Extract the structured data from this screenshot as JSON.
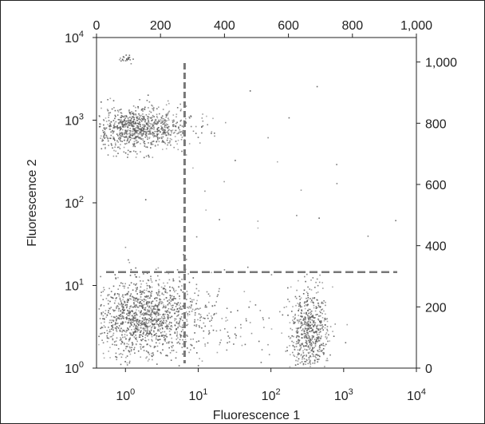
{
  "chart_data": {
    "type": "scatter",
    "xlabel": "Fluorescence 1",
    "ylabel": "Fluorescence 2",
    "x_axis_bottom": {
      "scale": "log",
      "range": [
        0.4,
        10000
      ],
      "ticks": [
        {
          "value": 1,
          "base": "10",
          "exp": "0"
        },
        {
          "value": 10,
          "base": "10",
          "exp": "1"
        },
        {
          "value": 100,
          "base": "10",
          "exp": "2"
        },
        {
          "value": 1000,
          "base": "10",
          "exp": "3"
        },
        {
          "value": 10000,
          "base": "10",
          "exp": "4"
        }
      ]
    },
    "x_axis_top": {
      "scale": "linear",
      "range": [
        0,
        1000
      ],
      "ticks": [
        {
          "value": 0,
          "label": "0"
        },
        {
          "value": 200,
          "label": "200"
        },
        {
          "value": 400,
          "label": "400"
        },
        {
          "value": 600,
          "label": "600"
        },
        {
          "value": 800,
          "label": "800"
        },
        {
          "value": 1000,
          "label": "1,000"
        }
      ]
    },
    "y_axis_left": {
      "scale": "log",
      "range": [
        1,
        10000
      ],
      "ticks": [
        {
          "value": 1,
          "base": "10",
          "exp": "0"
        },
        {
          "value": 10,
          "base": "10",
          "exp": "1"
        },
        {
          "value": 100,
          "base": "10",
          "exp": "2"
        },
        {
          "value": 1000,
          "base": "10",
          "exp": "3"
        },
        {
          "value": 10000,
          "base": "10",
          "exp": "4"
        }
      ]
    },
    "y_axis_right": {
      "scale": "linear",
      "range": [
        0,
        1080
      ],
      "ticks": [
        {
          "value": 0,
          "label": "0"
        },
        {
          "value": 200,
          "label": "200"
        },
        {
          "value": 400,
          "label": "400"
        },
        {
          "value": 600,
          "label": "600"
        },
        {
          "value": 800,
          "label": "800"
        },
        {
          "value": 1000,
          "label": "1,000"
        }
      ]
    },
    "gates": {
      "vertical_x": 6.5,
      "horizontal_y": 14.5,
      "style": "dashed",
      "color": "#777777"
    },
    "populations": [
      {
        "x_center": 1.5,
        "y_center": 800,
        "x_spread_log": 0.35,
        "y_spread_log": 0.13,
        "count": 900
      },
      {
        "x_center": 2.0,
        "y_center": 4.5,
        "x_spread_log": 0.35,
        "y_spread_log": 0.22,
        "count": 1100
      },
      {
        "x_center": 330,
        "y_center": 2.8,
        "x_spread_log": 0.13,
        "y_spread_log": 0.27,
        "count": 600
      },
      {
        "x_center": 1.3,
        "y_center": 2.5,
        "x_spread_log": 0.45,
        "y_spread_log": 0.2,
        "count": 250
      },
      {
        "x_center": 30,
        "y_center": 3.5,
        "x_spread_log": 0.6,
        "y_spread_log": 0.25,
        "count": 90
      },
      {
        "x_center": 1.0,
        "y_center": 5600,
        "x_spread_log": 0.06,
        "y_spread_log": 0.03,
        "count": 25
      },
      {
        "x_center": 40,
        "y_center": 60,
        "x_spread_log": 1.0,
        "y_spread_log": 0.9,
        "count": 40
      }
    ],
    "point_color": "#555555",
    "grid": false,
    "legend": "none"
  }
}
